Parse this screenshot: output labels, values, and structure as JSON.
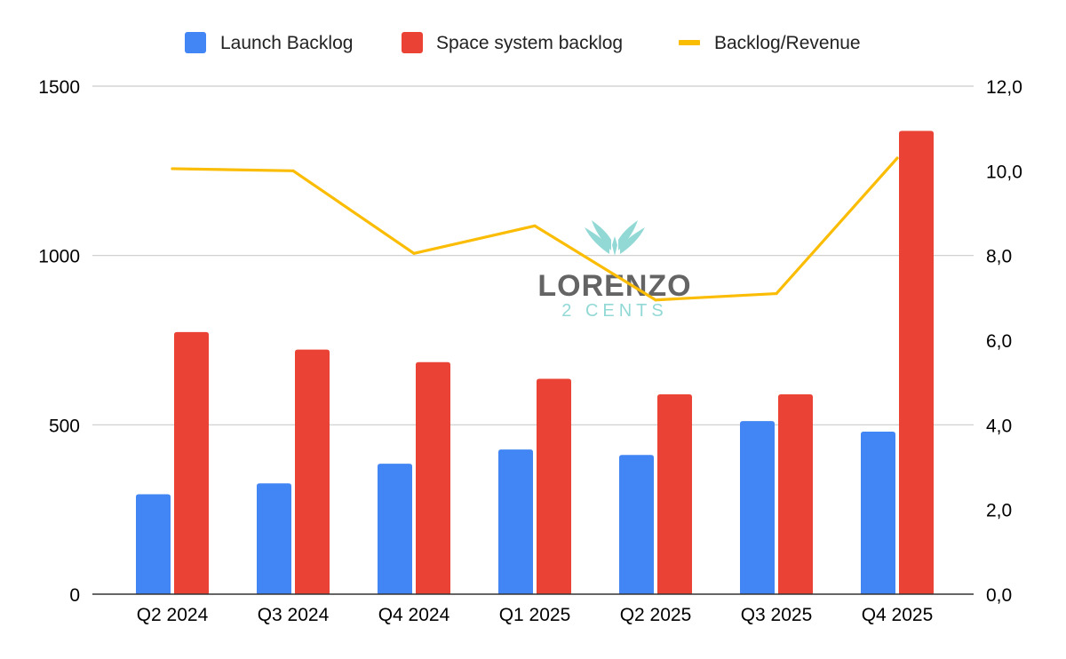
{
  "chart_data": {
    "type": "bar",
    "categories": [
      "Q2 2024",
      "Q3 2024",
      "Q4 2024",
      "Q1 2025",
      "Q2 2025",
      "Q3 2025",
      "Q4 2025"
    ],
    "series": [
      {
        "name": "Launch Backlog",
        "type": "bar",
        "axis": "left",
        "color": "#4285F4",
        "values": [
          295,
          327,
          385,
          427,
          411,
          511,
          480
        ]
      },
      {
        "name": "Space system backlog",
        "type": "bar",
        "axis": "left",
        "color": "#EA4335",
        "values": [
          774,
          722,
          685,
          636,
          590,
          590,
          1368
        ]
      },
      {
        "name": "Backlog/Revenue",
        "type": "line",
        "axis": "right",
        "color": "#FBBC04",
        "values": [
          10.05,
          10.0,
          8.05,
          8.7,
          6.95,
          7.1,
          10.3
        ]
      }
    ],
    "y_left": {
      "min": 0,
      "max": 1500,
      "ticks": [
        "0",
        "500",
        "1000",
        "1500"
      ],
      "tick_values": [
        0,
        500,
        1000,
        1500
      ]
    },
    "y_right": {
      "min": 0,
      "max": 12,
      "ticks": [
        "0,0",
        "2,0",
        "4,0",
        "6,0",
        "8,0",
        "10,0",
        "12,0"
      ],
      "tick_values": [
        0,
        2,
        4,
        6,
        8,
        10,
        12
      ]
    },
    "title": "",
    "xlabel": "",
    "ylabel": "",
    "grid": true,
    "legend_position": "top-center"
  },
  "watermark": {
    "line1": "LORENZO",
    "line2": "2 CENTS",
    "color_dark": "#4a4a4a",
    "color_accent": "#7fd3cf"
  }
}
